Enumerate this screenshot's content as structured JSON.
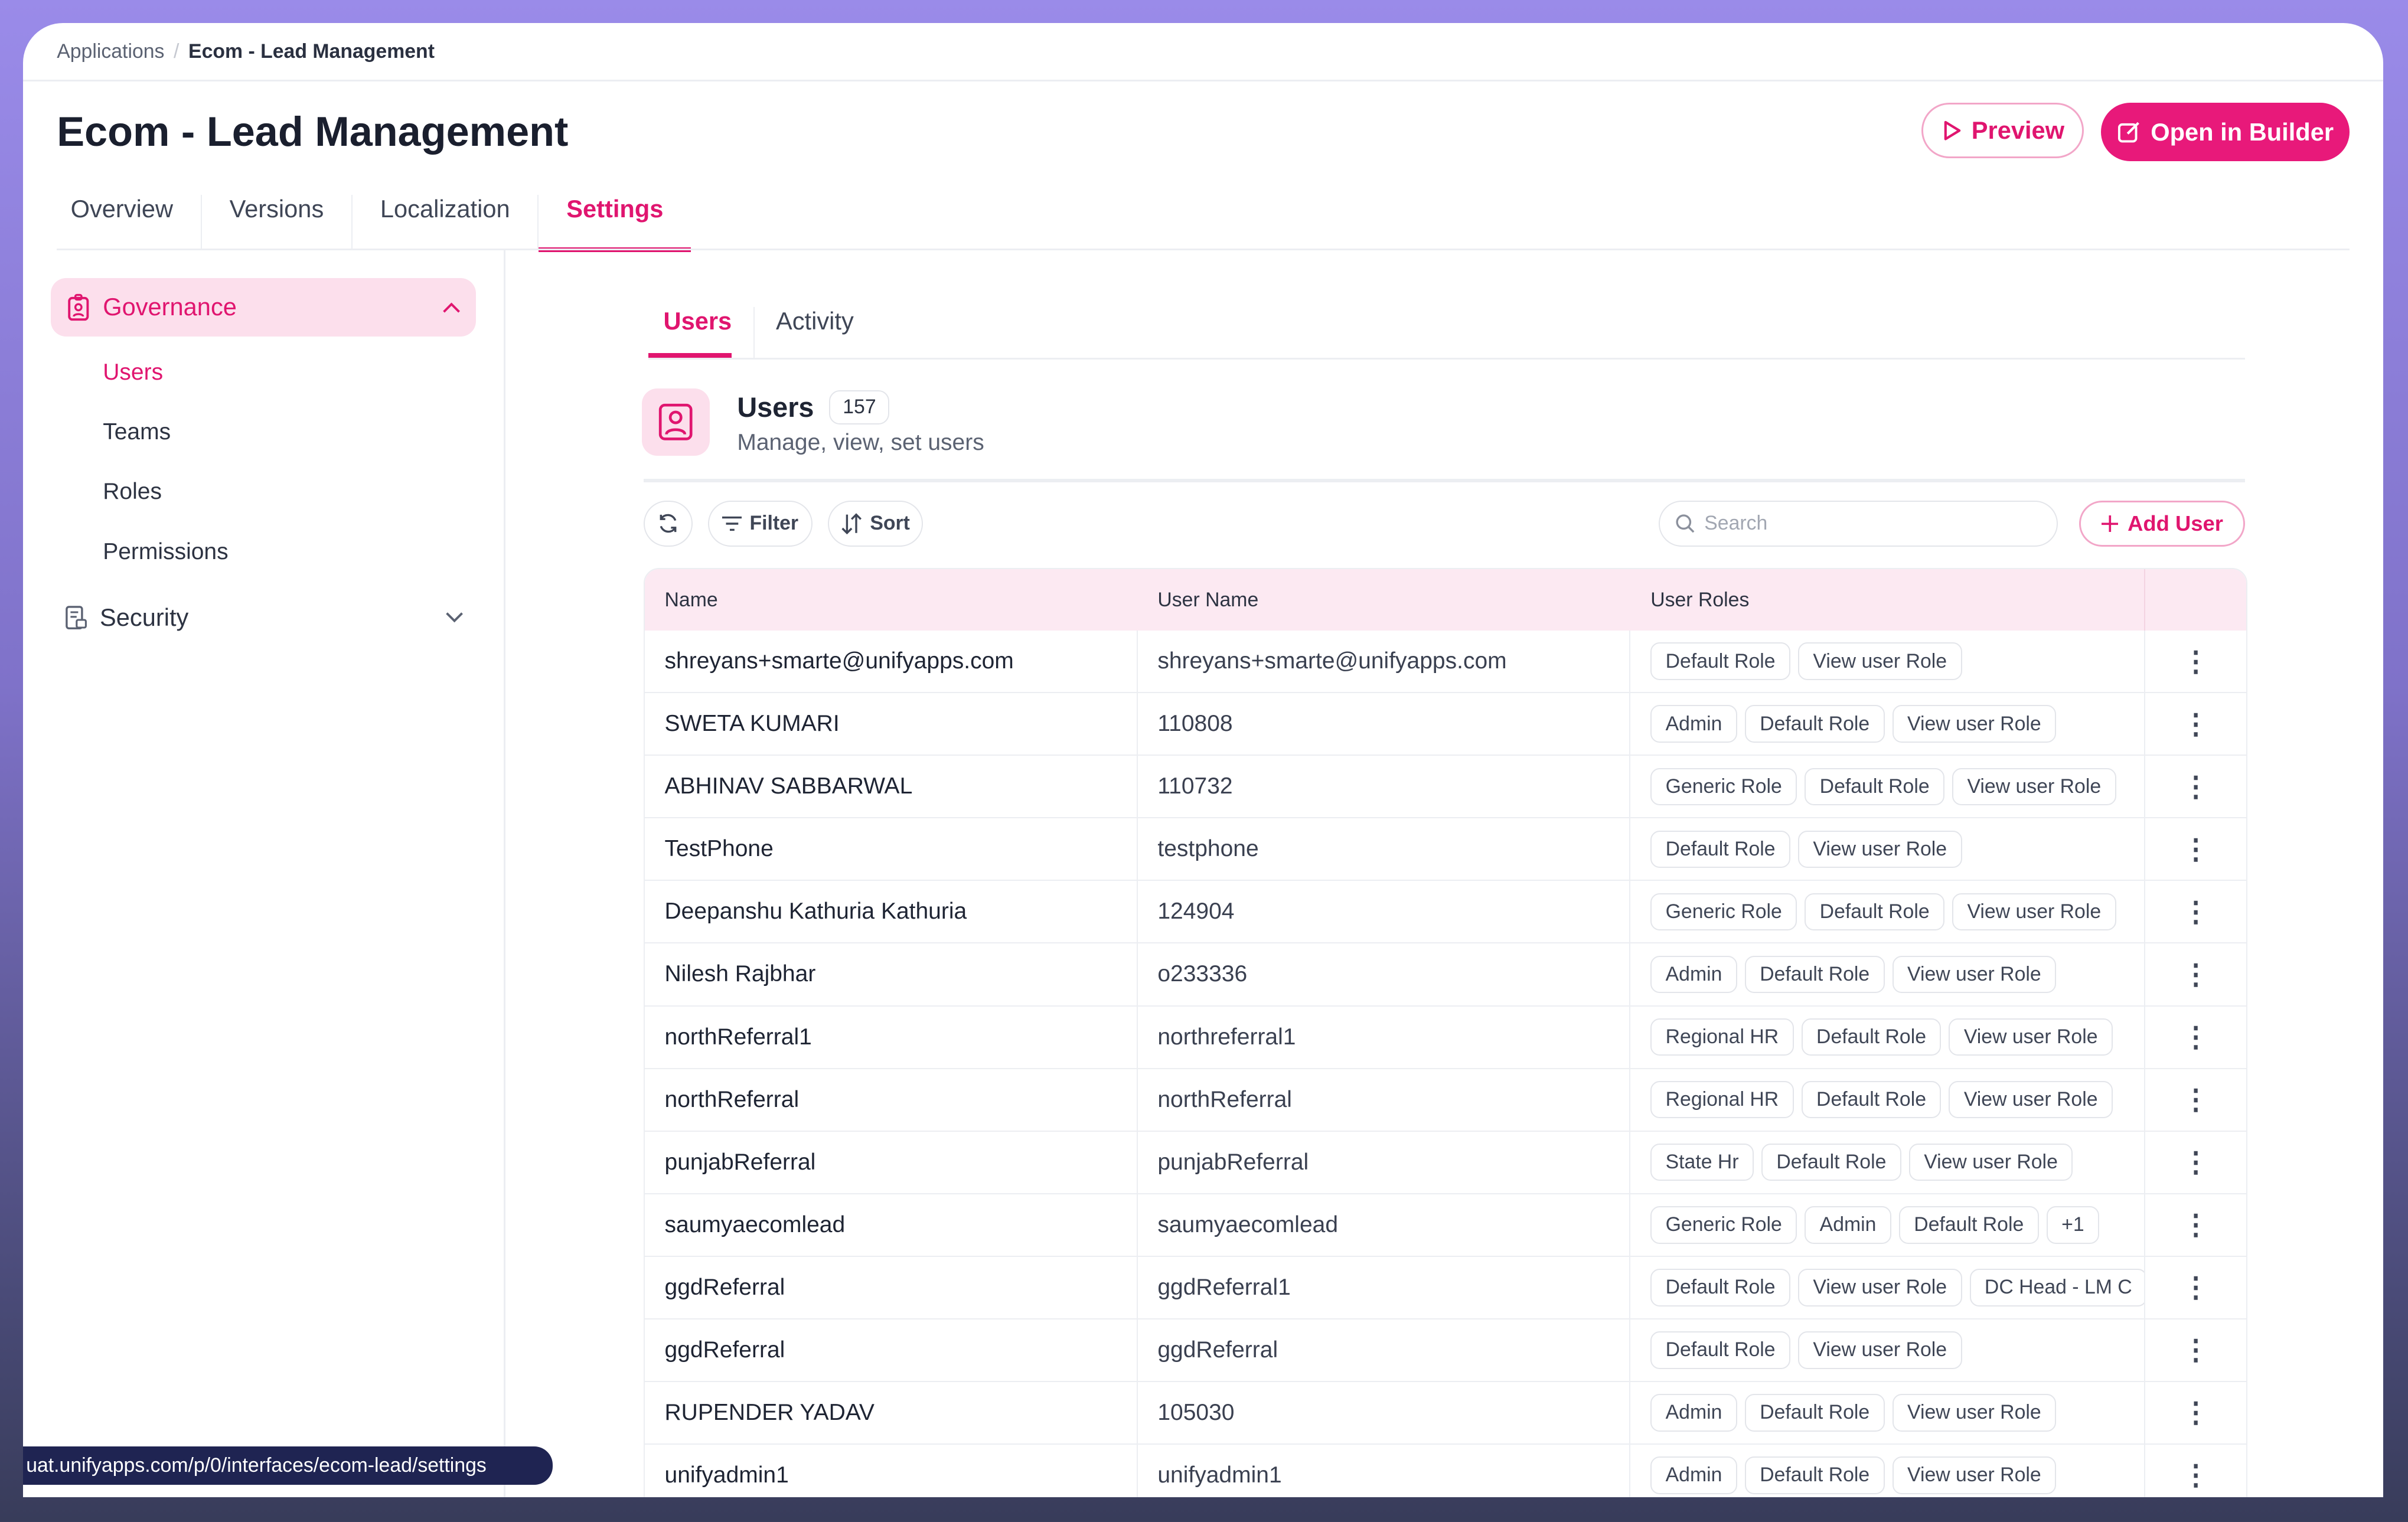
{
  "breadcrumb": {
    "parent": "Applications",
    "current": "Ecom - Lead Management"
  },
  "page_title": "Ecom - Lead Management",
  "actions": {
    "preview": "Preview",
    "open_builder": "Open in Builder"
  },
  "tabs": [
    {
      "label": "Overview"
    },
    {
      "label": "Versions"
    },
    {
      "label": "Localization"
    },
    {
      "label": "Settings",
      "active": true
    }
  ],
  "sidebar": {
    "governance": "Governance",
    "items": [
      {
        "label": "Users",
        "active": true
      },
      {
        "label": "Teams"
      },
      {
        "label": "Roles"
      },
      {
        "label": "Permissions"
      }
    ],
    "security": "Security"
  },
  "subtabs": [
    {
      "label": "Users",
      "active": true
    },
    {
      "label": "Activity"
    }
  ],
  "users_header": {
    "title": "Users",
    "count": "157",
    "subtitle": "Manage, view, set users"
  },
  "toolbar": {
    "filter": "Filter",
    "sort": "Sort",
    "search_placeholder": "Search",
    "add_user": "Add User"
  },
  "table": {
    "columns": [
      "Name",
      "User Name",
      "User Roles"
    ],
    "rows": [
      {
        "name": "shreyans+smarte@unifyapps.com",
        "username": "shreyans+smarte@unifyapps.com",
        "roles": [
          "Default Role",
          "View user Role"
        ]
      },
      {
        "name": "SWETA KUMARI",
        "username": "110808",
        "roles": [
          "Admin",
          "Default Role",
          "View user Role"
        ]
      },
      {
        "name": "ABHINAV SABBARWAL",
        "username": "110732",
        "roles": [
          "Generic Role",
          "Default Role",
          "View user Role"
        ]
      },
      {
        "name": "TestPhone",
        "username": "testphone",
        "roles": [
          "Default Role",
          "View user Role"
        ]
      },
      {
        "name": "Deepanshu Kathuria Kathuria",
        "username": "124904",
        "roles": [
          "Generic Role",
          "Default Role",
          "View user Role"
        ]
      },
      {
        "name": "Nilesh Rajbhar",
        "username": "o233336",
        "roles": [
          "Admin",
          "Default Role",
          "View user Role"
        ]
      },
      {
        "name": "northReferral1",
        "username": "northreferral1",
        "roles": [
          "Regional HR",
          "Default Role",
          "View user Role"
        ]
      },
      {
        "name": "northReferral",
        "username": "northReferral",
        "roles": [
          "Regional HR",
          "Default Role",
          "View user Role"
        ]
      },
      {
        "name": "punjabReferral",
        "username": "punjabReferral",
        "roles": [
          "State Hr",
          "Default Role",
          "View user Role"
        ]
      },
      {
        "name": "saumyaecomlead",
        "username": "saumyaecomlead",
        "roles": [
          "Generic Role",
          "Admin",
          "Default Role",
          "+1"
        ]
      },
      {
        "name": "ggdReferral",
        "username": "ggdReferral1",
        "roles": [
          "Default Role",
          "View user Role",
          "DC Head - LM C"
        ]
      },
      {
        "name": "ggdReferral",
        "username": "ggdReferral",
        "roles": [
          "Default Role",
          "View user Role"
        ]
      },
      {
        "name": "RUPENDER YADAV",
        "username": "105030",
        "roles": [
          "Admin",
          "Default Role",
          "View user Role"
        ]
      },
      {
        "name": "unifyadmin1",
        "username": "unifyadmin1",
        "roles": [
          "Admin",
          "Default Role",
          "View user Role"
        ]
      }
    ]
  },
  "status_url": "uat.unifyapps.com/p/0/interfaces/ecom-lead/settings",
  "colors": {
    "accent": "#e0156f",
    "accent_light": "#fcdfec"
  }
}
